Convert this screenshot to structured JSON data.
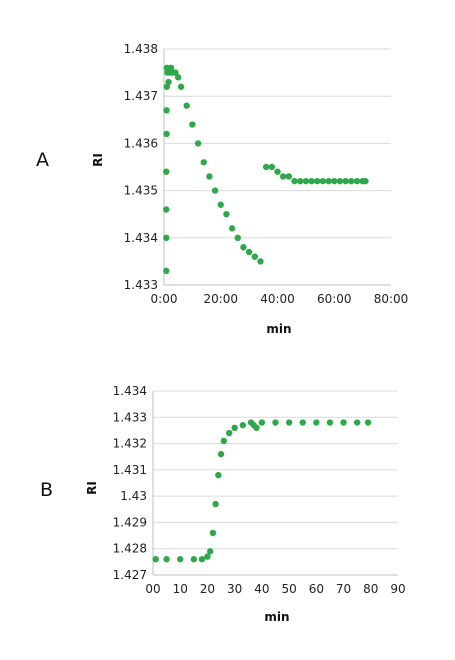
{
  "chart_data": [
    {
      "type": "scatter",
      "panel_label": "A",
      "xlabel": "min",
      "ylabel": "RI",
      "xlim": [
        0,
        80
      ],
      "ylim": [
        1.433,
        1.438
      ],
      "x_ticks": [
        "0:00",
        "20:00",
        "40:00",
        "60:00",
        "80:00"
      ],
      "y_ticks": [
        "1.438",
        "1.437",
        "1.436",
        "1.435",
        "1.434",
        "1.433"
      ],
      "grid": true,
      "color": "#2ea84a",
      "series": [
        {
          "points": [
            [
              0.8,
              1.4333
            ],
            [
              0.8,
              1.434
            ],
            [
              0.8,
              1.4346
            ],
            [
              0.8,
              1.4354
            ],
            [
              0.9,
              1.4362
            ],
            [
              0.9,
              1.4367
            ],
            [
              1.0,
              1.4372
            ],
            [
              1.0,
              1.4376
            ],
            [
              1.2,
              1.4375
            ],
            [
              1.6,
              1.4373
            ],
            [
              2.0,
              1.4375
            ],
            [
              2.5,
              1.4376
            ],
            [
              3,
              1.4375
            ],
            [
              4,
              1.4375
            ],
            [
              5,
              1.4374
            ],
            [
              6,
              1.4372
            ],
            [
              8,
              1.4368
            ],
            [
              10,
              1.4364
            ],
            [
              12,
              1.436
            ],
            [
              14,
              1.4356
            ],
            [
              16,
              1.4353
            ],
            [
              18,
              1.435
            ],
            [
              20,
              1.4347
            ],
            [
              22,
              1.4345
            ],
            [
              24,
              1.4342
            ],
            [
              26,
              1.434
            ],
            [
              28,
              1.4338
            ],
            [
              30,
              1.4337
            ],
            [
              32,
              1.4336
            ],
            [
              34,
              1.4335
            ],
            [
              36,
              1.4355
            ],
            [
              38,
              1.4355
            ],
            [
              40,
              1.4354
            ],
            [
              42,
              1.4353
            ],
            [
              44,
              1.4353
            ],
            [
              46,
              1.4352
            ],
            [
              48,
              1.4352
            ],
            [
              50,
              1.4352
            ],
            [
              52,
              1.4352
            ],
            [
              54,
              1.4352
            ],
            [
              56,
              1.4352
            ],
            [
              58,
              1.4352
            ],
            [
              60,
              1.4352
            ],
            [
              62,
              1.4352
            ],
            [
              64,
              1.4352
            ],
            [
              66,
              1.4352
            ],
            [
              68,
              1.4352
            ],
            [
              70,
              1.4352
            ],
            [
              71,
              1.4352
            ]
          ]
        }
      ]
    },
    {
      "type": "scatter",
      "panel_label": "B",
      "xlabel": "min",
      "ylabel": "RI",
      "xlim": [
        0,
        90
      ],
      "ylim": [
        1.427,
        1.434
      ],
      "x_ticks": [
        "00",
        "10",
        "20",
        "30",
        "40",
        "50",
        "60",
        "70",
        "80",
        "90"
      ],
      "y_ticks": [
        "1.434",
        "1.433",
        "1.432",
        "1.431",
        "1.43",
        "1.429",
        "1.428",
        "1.427"
      ],
      "grid": true,
      "color": "#2ea84a",
      "series": [
        {
          "points": [
            [
              1,
              1.4276
            ],
            [
              5,
              1.4276
            ],
            [
              10,
              1.4276
            ],
            [
              15,
              1.4276
            ],
            [
              18,
              1.4276
            ],
            [
              20,
              1.4277
            ],
            [
              21,
              1.4279
            ],
            [
              22,
              1.4286
            ],
            [
              23,
              1.4297
            ],
            [
              24,
              1.4308
            ],
            [
              25,
              1.4316
            ],
            [
              26,
              1.4321
            ],
            [
              28,
              1.4324
            ],
            [
              30,
              1.4326
            ],
            [
              33,
              1.4327
            ],
            [
              36,
              1.4328
            ],
            [
              37,
              1.4327
            ],
            [
              38,
              1.4326
            ],
            [
              40,
              1.4328
            ],
            [
              45,
              1.4328
            ],
            [
              50,
              1.4328
            ],
            [
              55,
              1.4328
            ],
            [
              60,
              1.4328
            ],
            [
              65,
              1.4328
            ],
            [
              70,
              1.4328
            ],
            [
              75,
              1.4328
            ],
            [
              79,
              1.4328
            ]
          ]
        }
      ]
    }
  ]
}
